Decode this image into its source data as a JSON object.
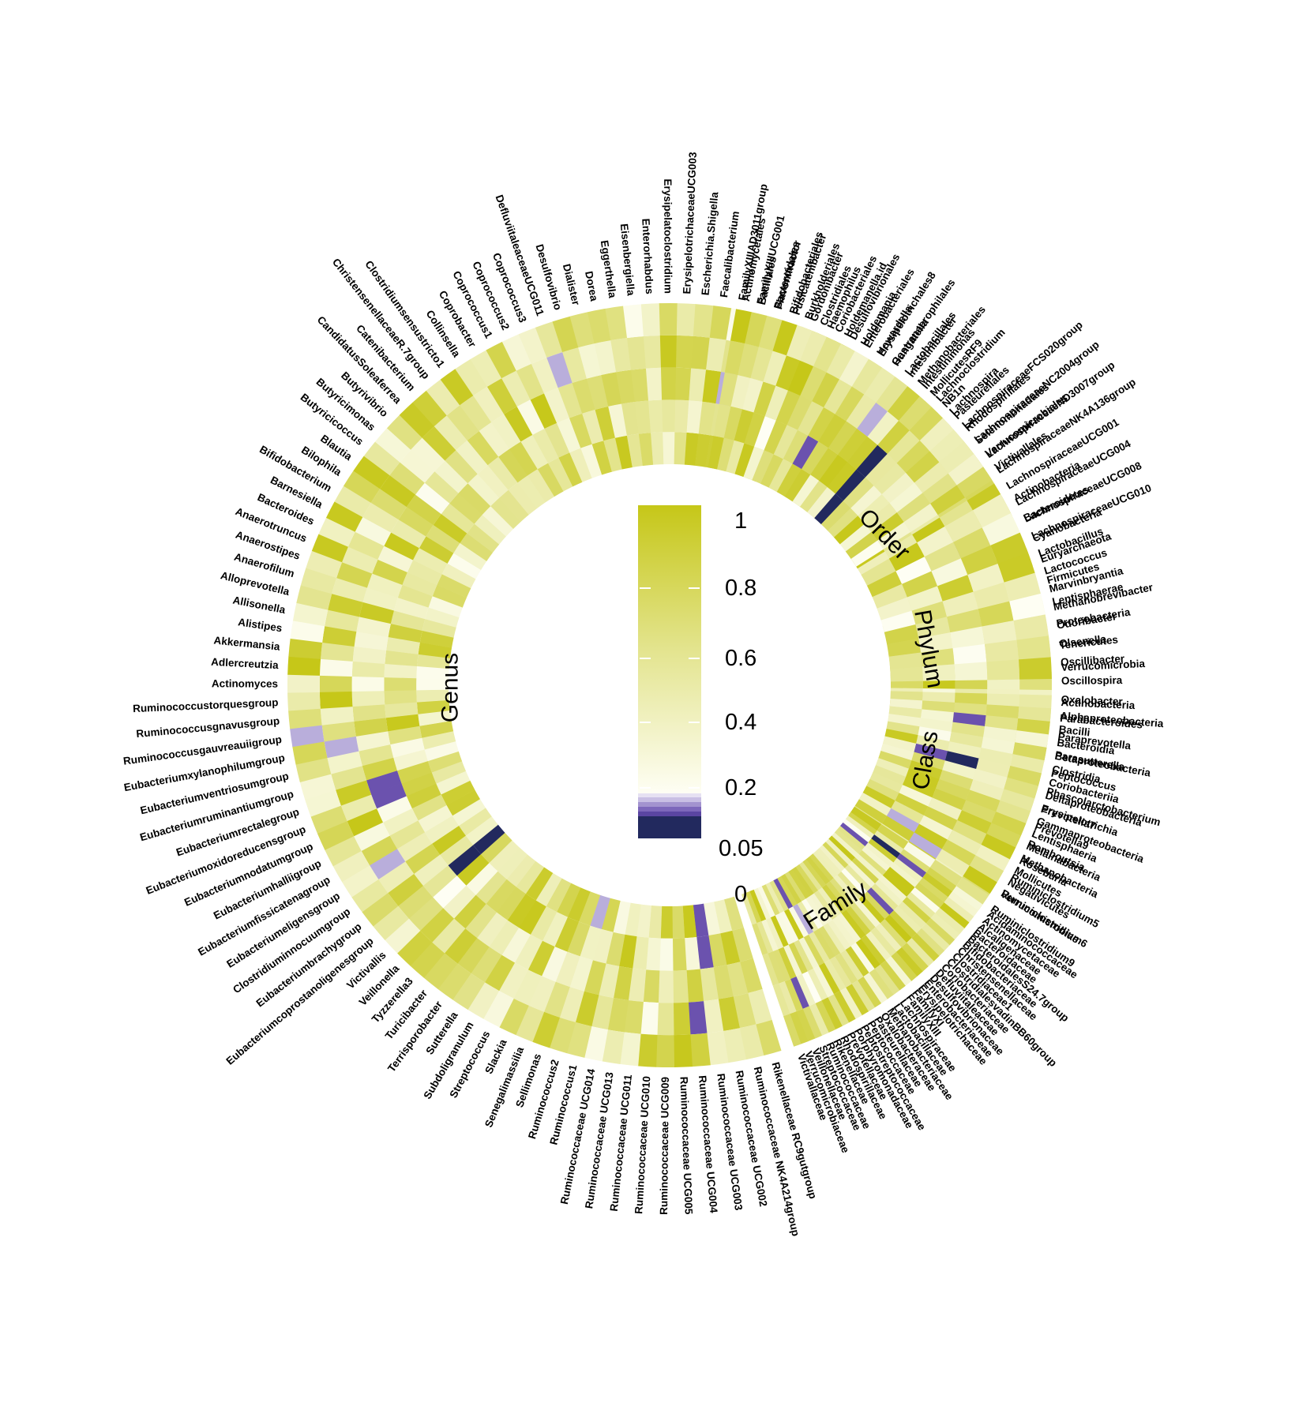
{
  "chart_data": {
    "type": "heatmap",
    "layout": "circular",
    "rings": 5,
    "colors": {
      "high": "#c6c718",
      "mid": "#e3e48e",
      "low": "#fefef4",
      "sig_light": "#b9aedb",
      "sig_mid": "#6b52ae",
      "sig_dark": "#22295e"
    },
    "legend": {
      "ticks": [
        "1",
        "0.8",
        "0.6",
        "0.4",
        "0.2",
        "0.05",
        "0"
      ],
      "tick_values": [
        1,
        0.8,
        0.6,
        0.4,
        0.2,
        0.05,
        0
      ]
    },
    "sections": [
      {
        "name": "Genus",
        "items": [
          "Rikenellaceae RC9gutgroup",
          "Ruminococcaceae NK4A214group",
          "Ruminococcaceae UCG002",
          "Ruminococcaceae UCG003",
          "Ruminococcaceae UCG004",
          "Ruminococcaceae UCG005",
          "Ruminococcaceae UCG009",
          "Ruminococcaceae UCG010",
          "Ruminococcaceae UCG011",
          "Ruminococcaceae UCG013",
          "Ruminococcaceae UCG014",
          "Ruminococcus1",
          "Ruminococcus2",
          "Sellimonas",
          "Senegalimassilia",
          "Slackia",
          "Streptococcus",
          "Subdoligranulum",
          "Sutterella",
          "Terrisporobacter",
          "Turicibacter",
          "Tyzzerella3",
          "Veillonella",
          "Victivallis",
          "Eubacteriumcoprostanoligenesgroup",
          "Eubacteriumbrachygroup",
          "Clostridiuminnocuumgroup",
          "Eubacteriumeligensgroup",
          "Eubacteriumfissicatenagroup",
          "Eubacteriumhalliigroup",
          "Eubacteriumnodatumgroup",
          "Eubacteriumoxidoreducensgroup",
          "Eubacteriumrectalegroup",
          "Eubacteriumruminantiumgroup",
          "Eubacteriumventriosumgroup",
          "Eubacteriumxylanophilumgroup",
          "Ruminococcusgauvreauiigroup",
          "Ruminococcusgnavusgroup",
          "Ruminococcustorquesgroup",
          "Actinomyces",
          "Adlercreutzia",
          "Akkermansia",
          "Alistipes",
          "Allisonella",
          "Alloprevotella",
          "Anaerofilum",
          "Anaerostipes",
          "Anaerotruncus",
          "Bacteroides",
          "Barnesiella",
          "Bifidobacterium",
          "Bilophila",
          "Blautia",
          "Butyricicoccus",
          "Butyricimonas",
          "Butyrivibrio",
          "CandidatusSoleaferrea",
          "Catenibacterium",
          "ChristensenellaceaeR.7group",
          "Clostridiumsensustricto1",
          "Collinsella",
          "Coprobacter",
          "Coprococcus1",
          "Coprococcus2",
          "Coprococcus3",
          "DefluviitaleaceaeUCG011",
          "Desulfovibrio",
          "Dialister",
          "Dorea",
          "Eggerthella",
          "Eisenbergiella",
          "Enterorhabdus",
          "Erysipelatoclostridium",
          "ErysipelotrichaceaeUCG003",
          "Escherichia.Shigella",
          "Faecalibacterium",
          "FamilyXIIIAD3011group",
          "FamilyXIIIUCG001",
          "Flavonifractor",
          "Fusicatenibacter",
          "Gordonibacter",
          "Haemophilus",
          "Holdemanella.id",
          "Holdemania",
          "Howardella",
          "Hungatella",
          "Intestinibacter",
          "Intestinimonas",
          "Lachnoclostridium",
          "Lachnospira",
          "LachnospiraceaeFCS020group",
          "LachnospiraceaeNC2004group",
          "LachnospiraceaeND3007group",
          "LachnospiraceaeNK4A136group",
          "LachnospiraceaeUCG001",
          "LachnospiraceaeUCG004",
          "LachnospiraceaeUCG008",
          "LachnospiraceaeUCG010",
          "Lactobacillus",
          "Lactococcus",
          "Marvinbryantia",
          "Methanobrevibacter",
          "Odoribacter",
          "Olsenella",
          "Oscillibacter",
          "Oscillospira",
          "Oxalobacter",
          "Parabacteroides",
          "Paraprevotella",
          "Parasutterella",
          "Peptococcus",
          "Phascolarctobacterium",
          "Prevotella7",
          "Prevotella9",
          "Romboutsia",
          "Roseburia",
          "Ruminiclostridium5",
          "Ruminiclostridium6",
          "Ruminiclostridium9"
        ]
      },
      {
        "name": "Order",
        "items": [
          "Actinomycetales",
          "Bacillales",
          "Bacteroidales",
          "Bifidobacteriales",
          "Burkholderiales",
          "Clostridiales",
          "Coriobacteriales",
          "Desulfovibrionales",
          "Enterobacteriales",
          "Erysipelotrichales8",
          "Gastranaerophilales",
          "Lactobacillales",
          "Methanobacteriales",
          "MollicutesRF9",
          "NB1n",
          "Pasteurellales",
          "Rhodospirillales",
          "Selenomonadales",
          "Verrucomicrobiales",
          "Victivallales"
        ]
      },
      {
        "name": "Phylum",
        "items": [
          "Actinobacteria",
          "Bacteroidetes",
          "Cyanobacteria",
          "Euryarchaeota",
          "Firmicutes",
          "Lentisphaerae",
          "Proteobacteria",
          "Tenericutes",
          "Verrucomicrobia"
        ]
      },
      {
        "name": "Class",
        "items": [
          "Actinobacteria",
          "Alphaproteobacteria",
          "Bacilli",
          "Bacteroidia",
          "Betaproteobacteria",
          "Clostridia",
          "Coriobacteriia",
          "Deltaproteobacteria",
          "Erysipelotrichia",
          "Gammaproteobacteria",
          "Lentisphaeria",
          "Melainabacteria",
          "Methanobacteria",
          "Mollicutes",
          "Negativicutes",
          "Verrucomicrobiae"
        ]
      },
      {
        "name": "Family",
        "items": [
          "Acidaminococcaceae",
          "Actinomycetaceae",
          "Alcaligenaceae",
          "Bacteroidaceae",
          "BacteroidalesS24.7group",
          "Bifidobacteriaceae",
          "Christensenellaceae",
          "Clostridiaceae1",
          "ClostridialesvadinBB60group",
          "Coriobacteriaceae",
          "Defluviitaleaceae",
          "Desulfovibrionaceae",
          "Enterobacteriaceae",
          "Erysipelotrichaceae",
          "FamilyXI",
          "FamilyXIII",
          "Lachnospiraceae",
          "Lactobacillaceae",
          "Methanobacteriaceae",
          "Oxalobacteraceae",
          "Pasteurellaceae",
          "Peptococcaceae",
          "Peptostreptococcaceae",
          "Porphyromonadaceae",
          "Prevotellaceae",
          "Rhodospirillaceae",
          "Rikenellaceae",
          "Ruminococcaceae",
          "Streptococcaceae",
          "Veillonellaceae",
          "Verrucomicrobiaceae",
          "Victivallaceae"
        ]
      }
    ]
  }
}
